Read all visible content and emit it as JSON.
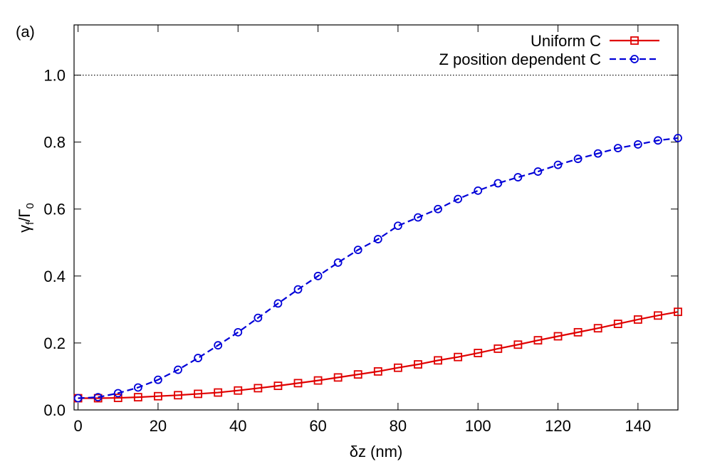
{
  "chart_data": {
    "type": "line",
    "panel_label": "(a)",
    "xlabel": "δz (nm)",
    "ylabel": [
      "γ",
      "f",
      "/Γ",
      "0"
    ],
    "x": [
      0,
      5,
      10,
      15,
      20,
      25,
      30,
      35,
      40,
      45,
      50,
      55,
      60,
      65,
      70,
      75,
      80,
      85,
      90,
      95,
      100,
      105,
      110,
      115,
      120,
      125,
      130,
      135,
      140,
      145,
      150
    ],
    "series": [
      {
        "name": "Uniform C",
        "color": "#e00000",
        "marker": "square",
        "dash": "solid",
        "values": [
          0.035,
          0.035,
          0.036,
          0.038,
          0.041,
          0.044,
          0.048,
          0.052,
          0.058,
          0.065,
          0.072,
          0.08,
          0.088,
          0.097,
          0.106,
          0.115,
          0.126,
          0.136,
          0.148,
          0.158,
          0.17,
          0.183,
          0.195,
          0.208,
          0.22,
          0.232,
          0.244,
          0.257,
          0.27,
          0.282,
          0.293
        ]
      },
      {
        "name": "Z position dependent C",
        "color": "#0000d8",
        "marker": "circle",
        "dash": "dashed",
        "values": [
          0.035,
          0.038,
          0.05,
          0.067,
          0.09,
          0.12,
          0.155,
          0.193,
          0.232,
          0.275,
          0.318,
          0.36,
          0.4,
          0.44,
          0.478,
          0.51,
          0.55,
          0.575,
          0.6,
          0.63,
          0.655,
          0.677,
          0.695,
          0.712,
          0.732,
          0.75,
          0.766,
          0.782,
          0.793,
          0.805,
          0.812
        ]
      }
    ],
    "reference_line": 1.0,
    "xlim": [
      -1,
      150
    ],
    "ylim": [
      0,
      1.15
    ],
    "xticks": [
      0,
      20,
      40,
      60,
      80,
      100,
      120,
      140
    ],
    "yticks": [
      {
        "value": 0,
        "label": "0.0"
      },
      {
        "value": 0.2,
        "label": "0.2"
      },
      {
        "value": 0.4,
        "label": "0.4"
      },
      {
        "value": 0.6,
        "label": "0.6"
      },
      {
        "value": 0.8,
        "label": "0.8"
      },
      {
        "value": 1.0,
        "label": "1.0"
      }
    ],
    "legend": "top-right"
  }
}
